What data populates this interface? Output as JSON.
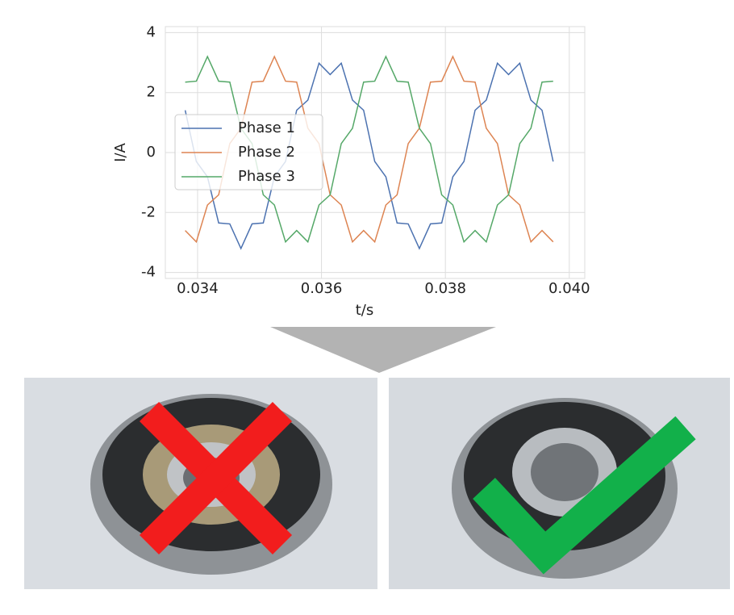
{
  "chart_data": {
    "type": "line",
    "xlabel": "t/s",
    "ylabel": "I/A",
    "x": [
      0.0338,
      0.03398,
      0.03416,
      0.03434,
      0.03452,
      0.0347,
      0.03488,
      0.03506,
      0.03524,
      0.03542,
      0.0356,
      0.03578,
      0.03596,
      0.03614,
      0.03632,
      0.0365,
      0.03668,
      0.03686,
      0.03704,
      0.03722,
      0.0374,
      0.03758,
      0.03776,
      0.03794,
      0.03812,
      0.0383,
      0.03848,
      0.03866,
      0.03884,
      0.03902,
      0.0392,
      0.03938,
      0.03956,
      0.03974
    ],
    "series": [
      {
        "name": "Phase 1",
        "color": "#4c72b0",
        "values": [
          1.41,
          -0.3,
          -0.81,
          -2.35,
          -2.38,
          -3.2,
          -2.38,
          -2.35,
          -0.81,
          -0.3,
          1.41,
          1.75,
          2.98,
          2.6,
          2.98,
          1.75,
          1.41,
          -0.3,
          -0.81,
          -2.35,
          -2.38,
          -3.2,
          -2.38,
          -2.35,
          -0.81,
          -0.3,
          1.41,
          1.75,
          2.98,
          2.6,
          2.98,
          1.75,
          1.41,
          -0.3
        ]
      },
      {
        "name": "Phase 2",
        "color": "#dd8452",
        "values": [
          -2.6,
          -2.98,
          -1.75,
          -1.41,
          0.3,
          0.81,
          2.35,
          2.38,
          3.2,
          2.38,
          2.35,
          0.81,
          0.3,
          -1.41,
          -1.75,
          -2.98,
          -2.6,
          -2.98,
          -1.75,
          -1.41,
          0.3,
          0.81,
          2.35,
          2.38,
          3.2,
          2.38,
          2.35,
          0.81,
          0.3,
          -1.41,
          -1.75,
          -2.98,
          -2.6,
          -2.98
        ]
      },
      {
        "name": "Phase 3",
        "color": "#55a868",
        "values": [
          2.35,
          2.38,
          3.2,
          2.38,
          2.35,
          0.81,
          0.3,
          -1.41,
          -1.75,
          -2.98,
          -2.6,
          -2.98,
          -1.75,
          -1.41,
          0.3,
          0.81,
          2.35,
          2.38,
          3.2,
          2.38,
          2.35,
          0.81,
          0.3,
          -1.41,
          -1.75,
          -2.98,
          -2.6,
          -2.98,
          -1.75,
          -1.41,
          0.3,
          0.81,
          2.35,
          2.38
        ]
      }
    ],
    "xlim": [
      0.03348,
      0.04025
    ],
    "ylim": [
      -4.2,
      4.2
    ],
    "xticks": [
      0.034,
      0.036,
      0.038,
      {
        "value": 0.04,
        "label": "0.040"
      }
    ],
    "yticks": [
      -4,
      -2,
      0,
      2,
      4
    ],
    "grid": true,
    "legend": "center left"
  }
}
